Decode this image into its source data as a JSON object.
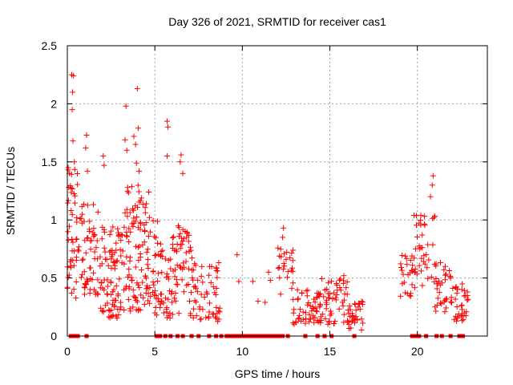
{
  "chart_data": {
    "type": "scatter",
    "title": "Day 326 of 2021, SRMTID for receiver cas1",
    "xlabel": "GPS time / hours",
    "ylabel": "SRMTID / TECUs",
    "xlim": [
      0,
      24
    ],
    "ylim": [
      0,
      2.5
    ],
    "x_ticks": [
      0,
      5,
      10,
      15,
      20
    ],
    "x_tick_labels": [
      "0",
      "5",
      "10",
      "15",
      "20"
    ],
    "y_ticks": [
      0,
      0.5,
      1,
      1.5,
      2,
      2.5
    ],
    "y_tick_labels": [
      "0",
      "0.5",
      "1",
      "1.5",
      "2",
      "2.5"
    ],
    "grid": true,
    "series": [
      {
        "name": "SRMTID",
        "color": "#ff0000",
        "marker": "plus",
        "clusters": [
          {
            "x_range": [
              0.0,
              0.6
            ],
            "y_range": [
              0.3,
              1.45
            ],
            "n": 45
          },
          {
            "x_range": [
              0.6,
              1.8
            ],
            "y_range": [
              0.35,
              1.15
            ],
            "n": 60
          },
          {
            "x_range": [
              1.8,
              3.2
            ],
            "y_range": [
              0.15,
              0.95
            ],
            "n": 90
          },
          {
            "x_range": [
              3.2,
              4.8
            ],
            "y_range": [
              0.2,
              1.3
            ],
            "n": 110
          },
          {
            "x_range": [
              4.8,
              6.0
            ],
            "y_range": [
              0.15,
              1.05
            ],
            "n": 60
          },
          {
            "x_range": [
              6.0,
              7.2
            ],
            "y_range": [
              0.15,
              0.95
            ],
            "n": 60
          },
          {
            "x_range": [
              7.2,
              8.8
            ],
            "y_range": [
              0.1,
              0.65
            ],
            "n": 55
          },
          {
            "x_range": [
              12.0,
              12.9
            ],
            "y_range": [
              0.3,
              0.8
            ],
            "n": 25
          },
          {
            "x_range": [
              12.9,
              14.5
            ],
            "y_range": [
              0.1,
              0.4
            ],
            "n": 60
          },
          {
            "x_range": [
              14.5,
              16.0
            ],
            "y_range": [
              0.1,
              0.5
            ],
            "n": 50
          },
          {
            "x_range": [
              16.0,
              16.9
            ],
            "y_range": [
              0.05,
              0.3
            ],
            "n": 35
          },
          {
            "x_range": [
              19.0,
              19.8
            ],
            "y_range": [
              0.3,
              0.7
            ],
            "n": 25
          },
          {
            "x_range": [
              19.8,
              21.0
            ],
            "y_range": [
              0.4,
              1.05
            ],
            "n": 40
          },
          {
            "x_range": [
              21.0,
              22.0
            ],
            "y_range": [
              0.2,
              0.7
            ],
            "n": 35
          },
          {
            "x_range": [
              22.0,
              22.9
            ],
            "y_range": [
              0.1,
              0.45
            ],
            "n": 35
          }
        ],
        "points": [
          [
            0.25,
            2.25
          ],
          [
            0.35,
            2.24
          ],
          [
            0.3,
            2.1
          ],
          [
            0.28,
            1.95
          ],
          [
            0.32,
            1.68
          ],
          [
            0.4,
            1.5
          ],
          [
            0.05,
            1.45
          ],
          [
            0.12,
            1.4
          ],
          [
            0.08,
            1.28
          ],
          [
            1.1,
            1.73
          ],
          [
            1.05,
            1.62
          ],
          [
            1.15,
            1.42
          ],
          [
            2.05,
            1.55
          ],
          [
            2.1,
            1.47
          ],
          [
            3.35,
            1.98
          ],
          [
            3.3,
            1.69
          ],
          [
            3.4,
            1.6
          ],
          [
            3.8,
            1.72
          ],
          [
            3.9,
            1.65
          ],
          [
            4.0,
            2.13
          ],
          [
            4.05,
            1.79
          ],
          [
            3.95,
            1.49
          ],
          [
            4.1,
            1.42
          ],
          [
            3.45,
            1.28
          ],
          [
            5.7,
            1.85
          ],
          [
            5.75,
            1.8
          ],
          [
            5.7,
            1.55
          ],
          [
            6.5,
            1.56
          ],
          [
            6.45,
            1.5
          ],
          [
            6.6,
            1.4
          ],
          [
            9.7,
            0.7
          ],
          [
            9.8,
            0.47
          ],
          [
            10.6,
            0.47
          ],
          [
            10.9,
            0.3
          ],
          [
            11.3,
            0.29
          ],
          [
            11.5,
            0.55
          ],
          [
            11.6,
            0.48
          ],
          [
            12.35,
            0.93
          ],
          [
            12.3,
            0.85
          ],
          [
            15.8,
            0.52
          ],
          [
            20.9,
            1.38
          ],
          [
            20.85,
            1.3
          ],
          [
            20.75,
            1.2
          ],
          [
            20.95,
            1.02
          ],
          [
            20.2,
            1.04
          ]
        ],
        "zero_points": [
          0.2,
          0.4,
          0.6,
          1.1,
          5.1,
          5.3,
          5.6,
          5.9,
          6.3,
          6.6,
          7.1,
          7.5,
          8.1,
          8.5,
          8.8,
          9.1,
          9.3,
          9.5,
          9.7,
          9.9,
          10.1,
          10.3,
          10.5,
          10.7,
          10.9,
          11.1,
          11.3,
          11.5,
          11.7,
          11.9,
          12.1,
          12.3,
          12.6,
          13.6,
          14.3,
          14.7,
          15.1,
          16.4,
          19.7,
          19.9,
          20.1,
          20.5,
          21.1,
          21.4,
          21.9,
          22.4,
          22.6
        ]
      }
    ]
  }
}
